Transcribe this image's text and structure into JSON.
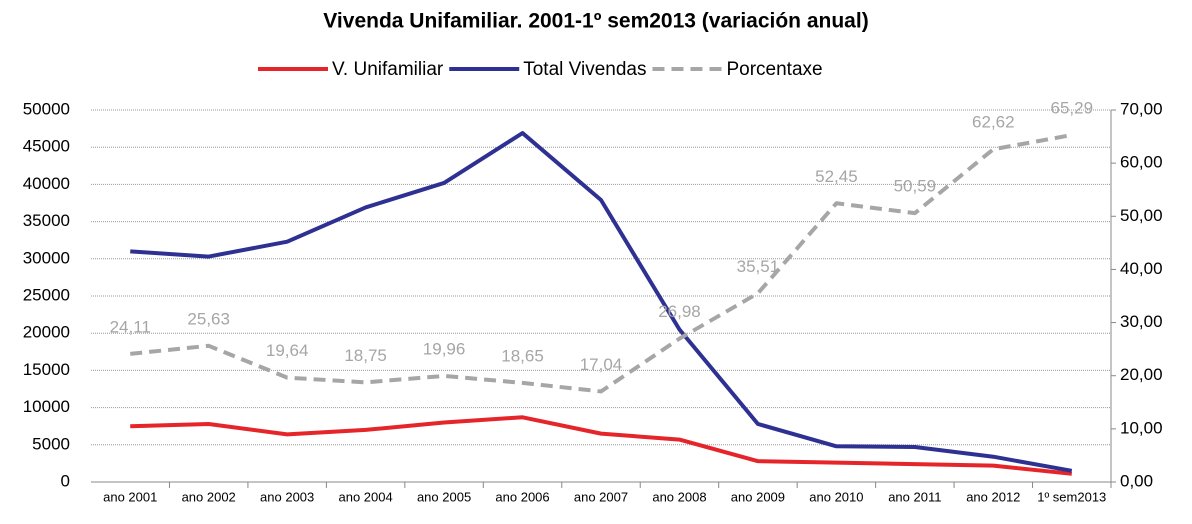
{
  "chart_data": {
    "type": "line",
    "title": "Vivenda Unifamiliar. 2001-1º sem2013 (variación anual)",
    "categories": [
      "ano 2001",
      "ano 2002",
      "ano 2003",
      "ano 2004",
      "ano 2005",
      "ano 2006",
      "ano 2007",
      "ano 2008",
      "ano 2009",
      "ano 2010",
      "ano 2011",
      "ano 2012",
      "1º sem2013"
    ],
    "series": [
      {
        "name": "V. Unifamiliar",
        "color": "#e52529",
        "values": [
          7500,
          7800,
          6400,
          7000,
          8000,
          8700,
          6500,
          5700,
          2800,
          2600,
          2400,
          2200,
          1100
        ]
      },
      {
        "name": "Total Vivendas",
        "color": "#2e3192",
        "values": [
          31000,
          30300,
          32300,
          36900,
          40200,
          46900,
          37900,
          20500,
          7800,
          4800,
          4700,
          3400,
          1500
        ]
      },
      {
        "name": "Porcentaxe",
        "color": "#a6a6a6",
        "axis": "y2",
        "dashed": true,
        "values": [
          24.11,
          25.63,
          19.64,
          18.75,
          19.96,
          18.65,
          17.04,
          26.98,
          35.51,
          52.45,
          50.59,
          62.62,
          65.29
        ],
        "value_labels": [
          "24,11",
          "25,63",
          "19,64",
          "18,75",
          "19,96",
          "18,65",
          "17,04",
          "26,98",
          "35,51",
          "52,45",
          "50,59",
          "62,62",
          "65,29"
        ]
      }
    ],
    "ylim": [
      0,
      50000
    ],
    "yticks": [
      0,
      5000,
      10000,
      15000,
      20000,
      25000,
      30000,
      35000,
      40000,
      45000,
      50000
    ],
    "y2lim": [
      0,
      70
    ],
    "y2ticks": [
      {
        "value": 0,
        "label": "0,00"
      },
      {
        "value": 10,
        "label": "10,00"
      },
      {
        "value": 20,
        "label": "20,00"
      },
      {
        "value": 30,
        "label": "30,00"
      },
      {
        "value": 40,
        "label": "40,00"
      },
      {
        "value": 50,
        "label": "50,00"
      },
      {
        "value": 60,
        "label": "60,00"
      },
      {
        "value": 70,
        "label": "70,00"
      }
    ],
    "grid": true
  }
}
